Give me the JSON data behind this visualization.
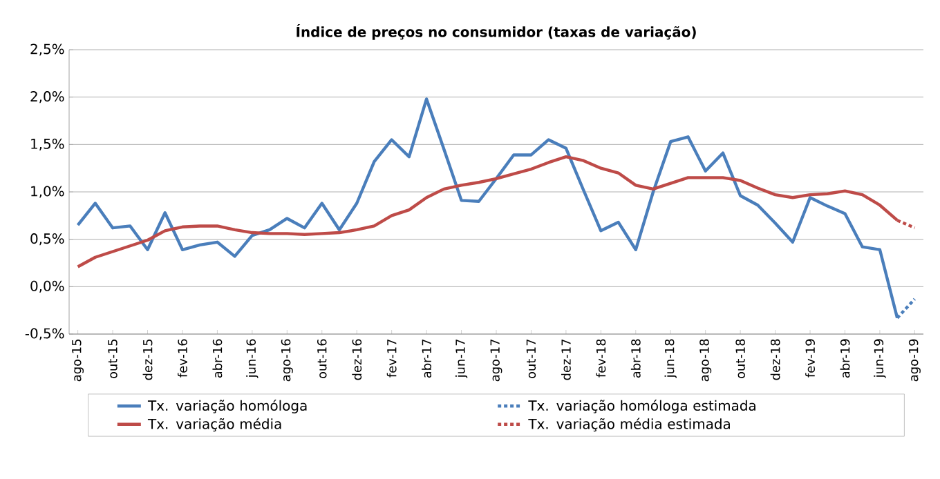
{
  "chart_data": {
    "type": "line",
    "title": "Índice de preços no consumidor (taxas de variação)",
    "categories": [
      "ago-15",
      null,
      "out-15",
      null,
      "dez-15",
      null,
      "fev-16",
      null,
      "abr-16",
      null,
      "jun-16",
      null,
      "ago-16",
      null,
      "out-16",
      null,
      "dez-16",
      null,
      "fev-17",
      null,
      "abr-17",
      null,
      "jun-17",
      null,
      "ago-17",
      null,
      "out-17",
      null,
      "dez-17",
      null,
      "fev-18",
      null,
      "abr-18",
      null,
      "jun-18",
      null,
      "ago-18",
      null,
      "out-18",
      null,
      "dez-18",
      null,
      "fev-19",
      null,
      "abr-19",
      null,
      "jun-19",
      null,
      "ago-19"
    ],
    "series": [
      {
        "name": "Tx. variação homóloga",
        "color": "#4a7ebb",
        "line_style": "solid",
        "values": [
          0.65,
          0.88,
          0.62,
          0.64,
          0.39,
          0.78,
          0.39,
          0.44,
          0.47,
          0.32,
          0.54,
          0.6,
          0.72,
          0.62,
          0.88,
          0.6,
          0.88,
          1.32,
          1.55,
          1.37,
          1.98,
          1.45,
          0.91,
          0.9,
          1.14,
          1.39,
          1.39,
          1.55,
          1.46,
          1.02,
          0.59,
          0.68,
          0.39,
          1.0,
          1.53,
          1.58,
          1.22,
          1.41,
          0.96,
          0.86,
          0.67,
          0.47,
          0.94,
          0.85,
          0.77,
          0.42,
          0.39,
          -0.33,
          null
        ]
      },
      {
        "name": "Tx. variação homóloga estimada",
        "color": "#4a7ebb",
        "line_style": "dotted",
        "values": [
          null,
          null,
          null,
          null,
          null,
          null,
          null,
          null,
          null,
          null,
          null,
          null,
          null,
          null,
          null,
          null,
          null,
          null,
          null,
          null,
          null,
          null,
          null,
          null,
          null,
          null,
          null,
          null,
          null,
          null,
          null,
          null,
          null,
          null,
          null,
          null,
          null,
          null,
          null,
          null,
          null,
          null,
          null,
          null,
          null,
          null,
          null,
          -0.33,
          -0.13
        ]
      },
      {
        "name": "Tx. variação média",
        "color": "#be4b48",
        "line_style": "solid",
        "values": [
          0.21,
          0.31,
          0.37,
          0.43,
          0.49,
          0.59,
          0.63,
          0.64,
          0.64,
          0.6,
          0.57,
          0.56,
          0.56,
          0.55,
          0.56,
          0.57,
          0.6,
          0.64,
          0.75,
          0.81,
          0.94,
          1.03,
          1.07,
          1.1,
          1.14,
          1.19,
          1.24,
          1.31,
          1.37,
          1.33,
          1.25,
          1.2,
          1.07,
          1.03,
          1.09,
          1.15,
          1.15,
          1.15,
          1.12,
          1.04,
          0.97,
          0.94,
          0.97,
          0.98,
          1.01,
          0.97,
          0.86,
          0.7,
          null
        ]
      },
      {
        "name": "Tx. variação média estimada",
        "color": "#be4b48",
        "line_style": "dotted",
        "values": [
          null,
          null,
          null,
          null,
          null,
          null,
          null,
          null,
          null,
          null,
          null,
          null,
          null,
          null,
          null,
          null,
          null,
          null,
          null,
          null,
          null,
          null,
          null,
          null,
          null,
          null,
          null,
          null,
          null,
          null,
          null,
          null,
          null,
          null,
          null,
          null,
          null,
          null,
          null,
          null,
          null,
          null,
          null,
          null,
          null,
          null,
          null,
          0.7,
          0.62
        ]
      }
    ],
    "ylim": [
      -0.5,
      2.5
    ],
    "yticks": [
      {
        "value": -0.5,
        "label": "-0,5%"
      },
      {
        "value": 0,
        "label": "0,0%"
      },
      {
        "value": 0.5,
        "label": "0,5%"
      },
      {
        "value": 1,
        "label": "1,0%"
      },
      {
        "value": 1.5,
        "label": "1,5%"
      },
      {
        "value": 2,
        "label": "2,0%"
      },
      {
        "value": 2.5,
        "label": "2,5%"
      }
    ],
    "grid": "y",
    "legend": "bottom",
    "marker": "none"
  }
}
